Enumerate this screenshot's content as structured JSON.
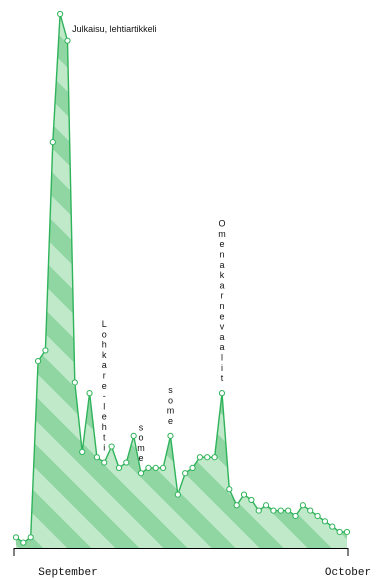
{
  "chart_data": {
    "type": "area",
    "title": "",
    "xlabel": "",
    "ylabel": "",
    "x_ticks": [
      "September",
      "October"
    ],
    "grid": false,
    "legend": "none",
    "colors": {
      "line": "#2fb35a",
      "fill_light": "#bfe9c9",
      "fill_dark": "#8fd6a3",
      "marker_fill": "#ffffff"
    },
    "x": [
      0,
      1,
      2,
      3,
      4,
      5,
      6,
      7,
      8,
      9,
      10,
      11,
      12,
      13,
      14,
      15,
      16,
      17,
      18,
      19,
      20,
      21,
      22,
      23,
      24,
      25,
      26,
      27,
      28,
      29,
      30,
      31,
      32,
      33,
      34,
      35,
      36,
      37,
      38,
      39,
      40,
      41,
      42,
      43,
      44,
      45
    ],
    "y": [
      2,
      1,
      2,
      35,
      37,
      76,
      100,
      95,
      31,
      18,
      29,
      17,
      16,
      19,
      15,
      16,
      21,
      14,
      15,
      15,
      15,
      21,
      10,
      14,
      15,
      17,
      17,
      17,
      29,
      11,
      8,
      10,
      9,
      7,
      8,
      7,
      7,
      7,
      6,
      8,
      7,
      6,
      5,
      4,
      3,
      3
    ],
    "annotations": [
      {
        "text": "Julkaisu, lehtiartikkeli",
        "orientation": "horizontal",
        "point_index": 6
      },
      {
        "text": "Lohkare-lehti",
        "orientation": "vertical",
        "point_index": 12
      },
      {
        "text": "some",
        "orientation": "vertical",
        "point_index": 17
      },
      {
        "text": "some",
        "orientation": "vertical",
        "point_index": 21
      },
      {
        "text": "Omenakarnevaalit",
        "orientation": "vertical",
        "point_index": 28
      }
    ]
  }
}
